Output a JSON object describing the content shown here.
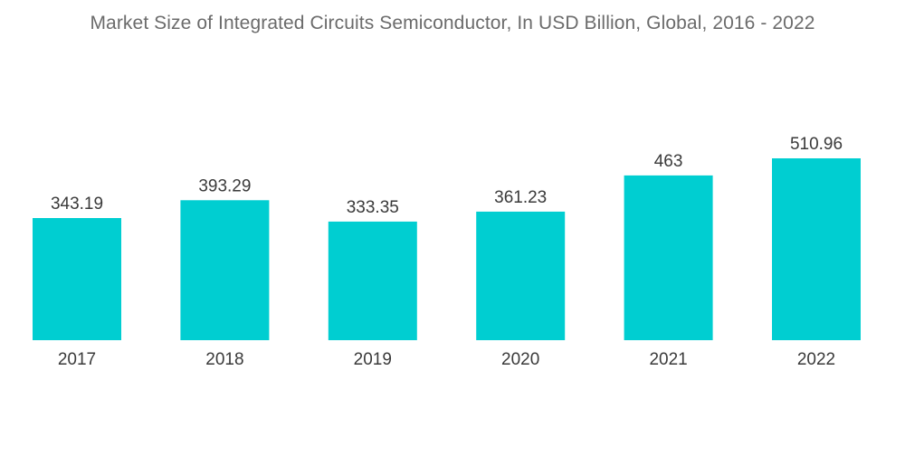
{
  "chart_data": {
    "type": "bar",
    "title": "Market Size of Integrated Circuits Semiconductor, In USD Billion, Global, 2016 - 2022",
    "xlabel": "",
    "ylabel": "",
    "categories": [
      "2017",
      "2018",
      "2019",
      "2020",
      "2021",
      "2022"
    ],
    "values": [
      343.19,
      393.29,
      333.35,
      361.23,
      463,
      510.96
    ],
    "value_labels": [
      "343.19",
      "393.29",
      "333.35",
      "361.23",
      "463",
      "510.96"
    ],
    "ylim": [
      0,
      510.96
    ],
    "grid": false,
    "legend": "none",
    "bar_color": "#00ced1"
  }
}
